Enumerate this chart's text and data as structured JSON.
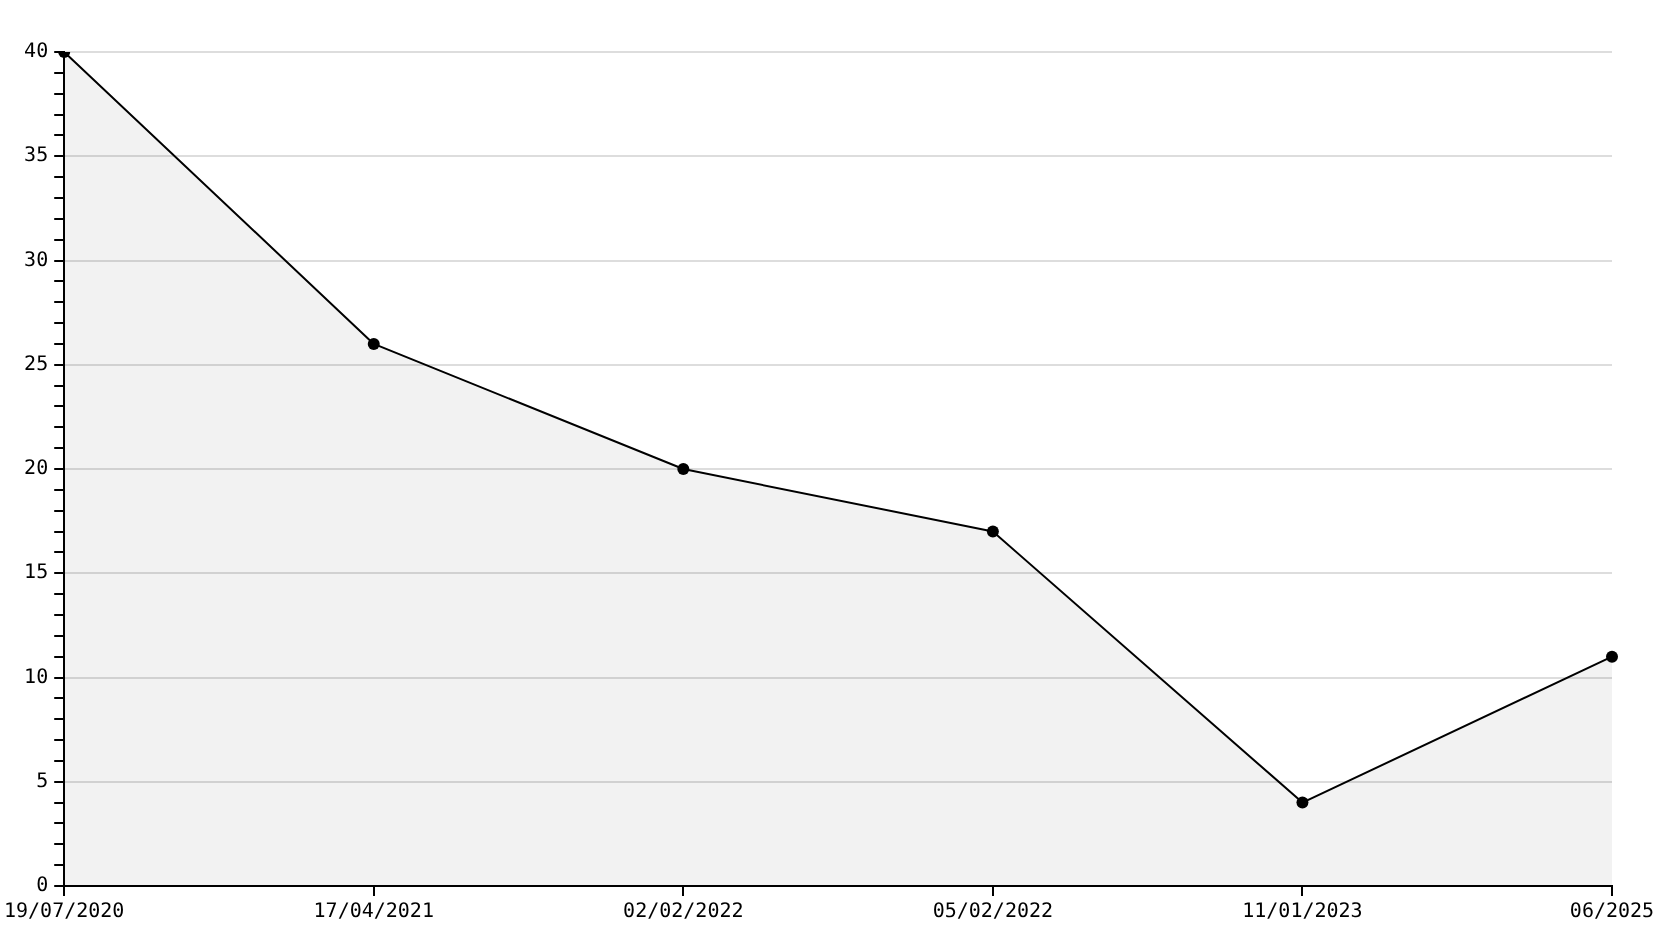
{
  "chart_data": {
    "type": "area",
    "categories": [
      "19/07/2020",
      "17/04/2021",
      "02/02/2022",
      "05/02/2022",
      "11/01/2023",
      "06/2025"
    ],
    "series": [
      {
        "color": "#000000",
        "values": [
          40,
          26,
          20,
          17,
          4,
          11
        ]
      }
    ],
    "ylim": [
      0,
      40
    ],
    "yticks": [
      0,
      {
        "value": 1,
        "label": null
      },
      {
        "value": 2,
        "label": null
      },
      {
        "value": 3,
        "label": null
      },
      {
        "value": 4,
        "label": null
      },
      5,
      {
        "value": 6,
        "label": null
      },
      {
        "value": 7,
        "label": null
      },
      {
        "value": 8,
        "label": null
      },
      {
        "value": 9,
        "label": null
      },
      10,
      {
        "value": 11,
        "label": null
      },
      {
        "value": 12,
        "label": null
      },
      {
        "value": 13,
        "label": null
      },
      {
        "value": 14,
        "label": null
      },
      15,
      {
        "value": 16,
        "label": null
      },
      {
        "value": 17,
        "label": null
      },
      {
        "value": 18,
        "label": null
      },
      {
        "value": 19,
        "label": null
      },
      20,
      {
        "value": 21,
        "label": null
      },
      {
        "value": 22,
        "label": null
      },
      {
        "value": 23,
        "label": null
      },
      {
        "value": 24,
        "label": null
      },
      25,
      {
        "value": 26,
        "label": null
      },
      {
        "value": 27,
        "label": null
      },
      {
        "value": 28,
        "label": null
      },
      {
        "value": 29,
        "label": null
      },
      30,
      {
        "value": 31,
        "label": null
      },
      {
        "value": 32,
        "label": null
      },
      {
        "value": 33,
        "label": null
      },
      {
        "value": 34,
        "label": null
      },
      35,
      {
        "value": 36,
        "label": null
      },
      {
        "value": 37,
        "label": null
      },
      {
        "value": 38,
        "label": null
      },
      {
        "value": 39,
        "label": null
      },
      40
    ],
    "grid": "y",
    "legend": false,
    "marker": "circle",
    "line_style": "solid"
  }
}
